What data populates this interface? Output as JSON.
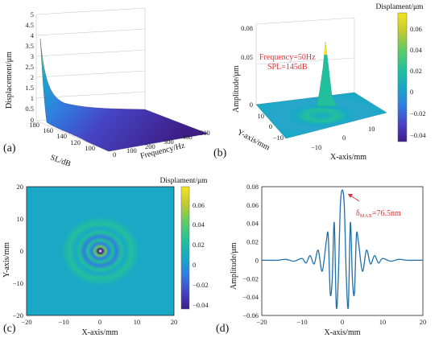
{
  "colors": {
    "annotation": "#d33333",
    "line": "#1f6fa8",
    "colormap": [
      "#3e1d86",
      "#4644c4",
      "#2f7fe0",
      "#1aa8c6",
      "#22bf9c",
      "#63cc62",
      "#c3c930",
      "#f4e51d"
    ]
  },
  "chart_data": [
    {
      "id": "a",
      "type": "surface",
      "panel_label": "(a)",
      "zlabel": "Displacement/μm",
      "xlabel": "Frequency/Hz",
      "ylabel": "SL/dB",
      "x_ticks": [
        "0",
        "100",
        "200",
        "300",
        "400",
        "500"
      ],
      "y_ticks": [
        "100",
        "120",
        "140",
        "160",
        "180"
      ],
      "z_ticks": [
        "0",
        "0.5",
        "1",
        "1.5",
        "2",
        "2.5",
        "3",
        "3.5",
        "4",
        "4.5",
        "5"
      ],
      "xlim": [
        0,
        500
      ],
      "ylim": [
        100,
        180
      ],
      "zlim": [
        0,
        5
      ],
      "peak_value": 4.3
    },
    {
      "id": "b",
      "type": "surface",
      "panel_label": "(b)",
      "zlabel": "Amplitude/μm",
      "xlabel": "X-axis/mm",
      "ylabel": "Y-axis/mm",
      "x_ticks": [
        "−10",
        "0",
        "10"
      ],
      "y_ticks": [
        "10",
        "0",
        "−10"
      ],
      "z_ticks": [
        "0",
        "0.05",
        "0.08"
      ],
      "annotation": [
        "Frequency=50Hz",
        "SPL=145dB"
      ],
      "colorbar": {
        "title": "Displament/μm",
        "ticks": [
          "0.06",
          "0.04",
          "0.02",
          "0",
          "−0.02",
          "−0.04"
        ],
        "range": [
          -0.048,
          0.075
        ]
      }
    },
    {
      "id": "c",
      "type": "heatmap",
      "panel_label": "(c)",
      "xlabel": "X-axis/mm",
      "ylabel": "Y-axis/mm",
      "x_ticks": [
        "−20",
        "−10",
        "0",
        "10",
        "20"
      ],
      "y_ticks": [
        "20",
        "10",
        "0",
        "−10",
        "−20"
      ],
      "xlim": [
        -20,
        20
      ],
      "ylim": [
        -20,
        20
      ],
      "colorbar": {
        "title": "Displament/μm",
        "ticks": [
          "0.06",
          "0.04",
          "0.02",
          "0",
          "−0.02",
          "−0.04"
        ],
        "range": [
          -0.048,
          0.075
        ]
      }
    },
    {
      "id": "d",
      "type": "line",
      "panel_label": "(d)",
      "xlabel": "X-axis/mm",
      "ylabel": "Amplitude/μm",
      "x_ticks": [
        "−20",
        "−10",
        "0",
        "10",
        "20"
      ],
      "y_ticks": [
        "0.08",
        "0.06",
        "0.04",
        "0.02",
        "0",
        "−0.02",
        "−0.04",
        "−0.06"
      ],
      "xlim": [
        -20,
        20
      ],
      "ylim": [
        -0.06,
        0.08
      ],
      "annotation": {
        "prefix": "δ",
        "sub": "MAX",
        "suffix": "=76.5nm",
        "x": 0,
        "y": 0.0765
      },
      "x": [
        -20,
        -18,
        -16,
        -14,
        -12,
        -10,
        -9,
        -8,
        -7,
        -6,
        -5,
        -4,
        -3.5,
        -3,
        -2.5,
        -2,
        -1.5,
        -1,
        -0.5,
        0,
        0.5,
        1,
        1.5,
        2,
        2.5,
        3,
        3.5,
        4,
        5,
        6,
        7,
        8,
        9,
        10,
        12,
        14,
        16,
        18,
        20
      ],
      "y": [
        0,
        0,
        0,
        0.001,
        -0.001,
        0.002,
        -0.003,
        0.005,
        -0.004,
        0.011,
        -0.012,
        0.02,
        0.027,
        -0.036,
        -0.02,
        0.041,
        -0.05,
        -0.02,
        0.058,
        0.0765,
        0.058,
        -0.02,
        -0.05,
        0.041,
        -0.02,
        -0.036,
        0.027,
        0.02,
        -0.012,
        0.011,
        -0.004,
        0.005,
        -0.003,
        0.002,
        -0.001,
        0.001,
        0,
        0,
        0
      ]
    }
  ]
}
